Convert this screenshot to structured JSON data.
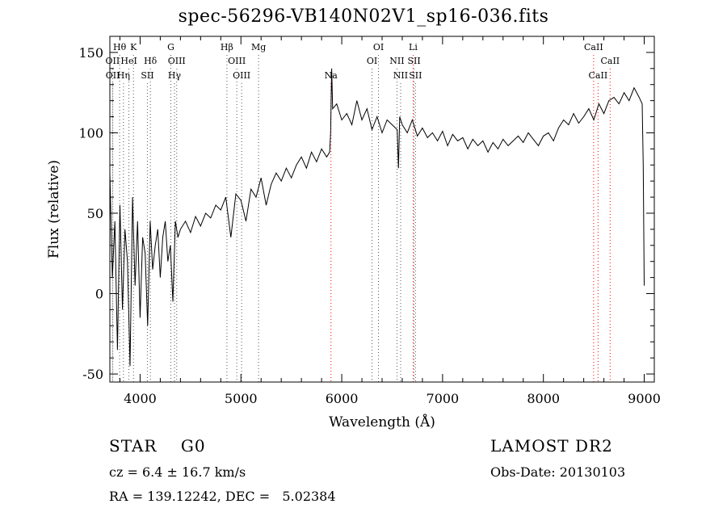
{
  "title": "spec-56296-VB140N02V1_sp16-036.fits",
  "footer": {
    "object_class": "STAR",
    "subclass": "G0",
    "survey": "LAMOST DR2",
    "cz_text": "cz = 6.4 ± 16.7 km/s",
    "obs_date_text": "Obs-Date: 20130103",
    "radec_text": "RA = 139.12242, DEC =   5.02384"
  },
  "chart_data": {
    "type": "line",
    "title": "spec-56296-VB140N02V1_sp16-036.fits",
    "xlabel": "Wavelength (Å)",
    "ylabel": "Flux (relative)",
    "xlim": [
      3700,
      9100
    ],
    "ylim": [
      -55,
      160
    ],
    "xticks": [
      4000,
      5000,
      6000,
      7000,
      8000,
      9000
    ],
    "yticks": [
      -50,
      0,
      50,
      100,
      150
    ],
    "line_color": "#000000",
    "marker_color": "#ff0000",
    "series": [
      {
        "values_x": [
          3700,
          3725,
          3750,
          3775,
          3800,
          3825,
          3850,
          3875,
          3900,
          3925,
          3950,
          3975,
          4000,
          4025,
          4050,
          4075,
          4100,
          4125,
          4150,
          4175,
          4200,
          4225,
          4250,
          4275,
          4300,
          4325,
          4350,
          4375,
          4400,
          4450,
          4500,
          4550,
          4600,
          4650,
          4700,
          4750,
          4800,
          4850,
          4900,
          4950,
          5000,
          5050,
          5100,
          5150,
          5200,
          5250,
          5300,
          5350,
          5400,
          5450,
          5500,
          5550,
          5600,
          5650,
          5700,
          5750,
          5800,
          5850,
          5880,
          5890,
          5900,
          5910,
          5950,
          6000,
          6050,
          6100,
          6150,
          6200,
          6250,
          6300,
          6350,
          6400,
          6450,
          6500,
          6550,
          6563,
          6575,
          6600,
          6650,
          6700,
          6750,
          6800,
          6850,
          6900,
          6950,
          7000,
          7050,
          7100,
          7150,
          7200,
          7250,
          7300,
          7350,
          7400,
          7450,
          7500,
          7550,
          7600,
          7650,
          7700,
          7750,
          7800,
          7850,
          7900,
          7950,
          8000,
          8050,
          8100,
          8150,
          8200,
          8250,
          8300,
          8350,
          8400,
          8450,
          8500,
          8550,
          8600,
          8650,
          8700,
          8750,
          8800,
          8850,
          8900,
          8950,
          8980,
          8990,
          9000
        ],
        "values_y": [
          75,
          10,
          45,
          -35,
          55,
          -10,
          40,
          20,
          -45,
          60,
          5,
          45,
          -15,
          35,
          25,
          -20,
          45,
          15,
          30,
          40,
          10,
          35,
          45,
          20,
          30,
          -5,
          45,
          35,
          40,
          45,
          38,
          48,
          42,
          50,
          47,
          55,
          52,
          60,
          35,
          62,
          58,
          45,
          65,
          60,
          72,
          55,
          68,
          75,
          70,
          78,
          72,
          80,
          85,
          78,
          88,
          82,
          90,
          85,
          88,
          100,
          140,
          115,
          118,
          108,
          112,
          105,
          120,
          108,
          115,
          102,
          110,
          100,
          108,
          105,
          102,
          78,
          110,
          105,
          100,
          108,
          98,
          103,
          97,
          100,
          95,
          101,
          92,
          99,
          95,
          97,
          90,
          96,
          92,
          95,
          88,
          94,
          90,
          96,
          92,
          95,
          98,
          94,
          100,
          96,
          92,
          98,
          100,
          95,
          103,
          108,
          105,
          112,
          106,
          110,
          115,
          108,
          118,
          112,
          120,
          122,
          118,
          125,
          120,
          128,
          122,
          118,
          80,
          5
        ]
      }
    ],
    "line_labels": [
      {
        "label": "Hθ",
        "x": 3797,
        "row": 0,
        "style": "dot"
      },
      {
        "label": "OII",
        "x": 3727,
        "row": 1,
        "style": "dot"
      },
      {
        "label": "OII",
        "x": 3729,
        "row": 2,
        "style": "dot"
      },
      {
        "label": "HeI",
        "x": 3889,
        "row": 1,
        "style": "dot"
      },
      {
        "label": "Hη",
        "x": 3835,
        "row": 2,
        "style": "dot"
      },
      {
        "label": "K",
        "x": 3934,
        "row": 0,
        "style": "dot"
      },
      {
        "label": "Hδ",
        "x": 4102,
        "row": 1,
        "style": "dot"
      },
      {
        "label": "SII",
        "x": 4072,
        "row": 2,
        "style": "dot"
      },
      {
        "label": "G",
        "x": 4305,
        "row": 0,
        "style": "dot"
      },
      {
        "label": "OIII",
        "x": 4363,
        "row": 1,
        "style": "dot"
      },
      {
        "label": "Hγ",
        "x": 4341,
        "row": 2,
        "style": "dot"
      },
      {
        "label": "Hβ",
        "x": 4861,
        "row": 0,
        "style": "dot"
      },
      {
        "label": "OIII",
        "x": 4959,
        "row": 1,
        "style": "dot"
      },
      {
        "label": "OIII",
        "x": 5007,
        "row": 2,
        "style": "dot"
      },
      {
        "label": "Mg",
        "x": 5175,
        "row": 0,
        "style": "dot"
      },
      {
        "label": "Na",
        "x": 5893,
        "row": 2,
        "style": "red"
      },
      {
        "label": "OI",
        "x": 6364,
        "row": 0,
        "style": "dot"
      },
      {
        "label": "OI",
        "x": 6300,
        "row": 1,
        "style": "dot"
      },
      {
        "label": "Li",
        "x": 6708,
        "row": 0,
        "style": "red"
      },
      {
        "label": "NII",
        "x": 6548,
        "row": 1,
        "style": "dot"
      },
      {
        "label": "SII",
        "x": 6717,
        "row": 1,
        "style": "dot"
      },
      {
        "label": "NII",
        "x": 6584,
        "row": 2,
        "style": "dot"
      },
      {
        "label": "SII",
        "x": 6731,
        "row": 2,
        "style": "dot"
      },
      {
        "label": "CaII",
        "x": 8498,
        "row": 0,
        "style": "red"
      },
      {
        "label": "CaII",
        "x": 8662,
        "row": 1,
        "style": "red"
      },
      {
        "label": "CaII",
        "x": 8542,
        "row": 2,
        "style": "red"
      }
    ]
  }
}
